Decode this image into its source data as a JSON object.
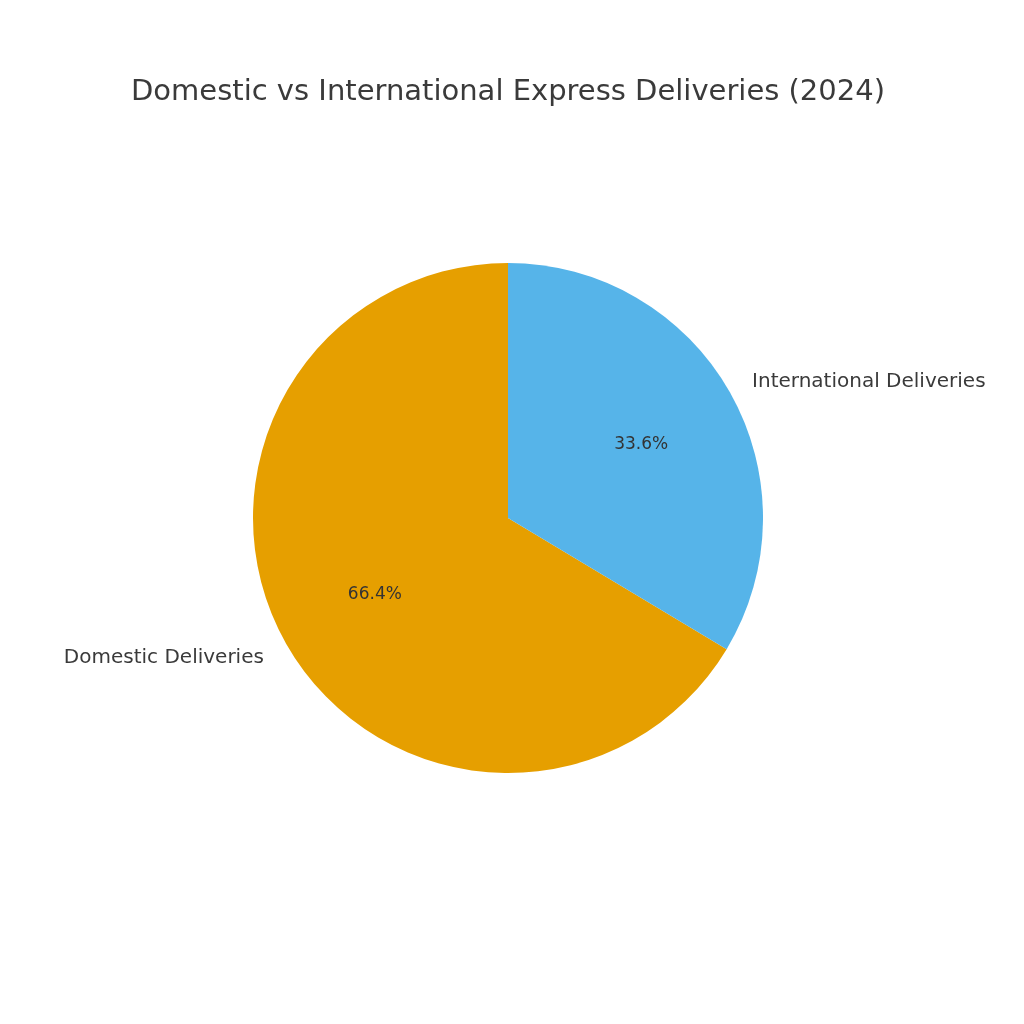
{
  "chart_data": {
    "type": "pie",
    "title": "Domestic vs International Express Deliveries (2024)",
    "categories": [
      "Domestic Deliveries",
      "International Deliveries"
    ],
    "values": [
      66.4,
      33.6
    ],
    "colors": [
      "#e69f00",
      "#56b4e9"
    ],
    "value_labels": [
      "66.4%",
      "33.6%"
    ]
  }
}
